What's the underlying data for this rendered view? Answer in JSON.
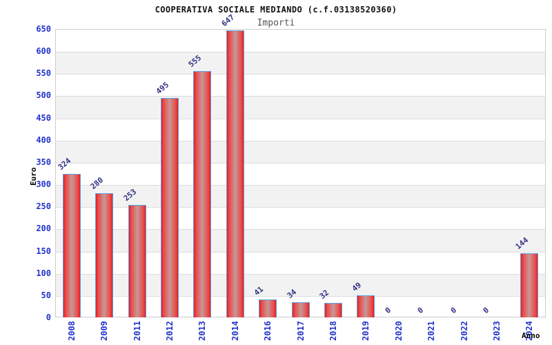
{
  "title": "COOPERATIVA SOCIALE MEDIANDO (c.f.03138520360)",
  "legend": "Importi",
  "chart_data": {
    "type": "bar",
    "title": "COOPERATIVA SOCIALE MEDIANDO (c.f.03138520360)",
    "legend_label": "Importi",
    "xlabel": "Anno",
    "ylabel": "Euro",
    "categories": [
      "2008",
      "2009",
      "2011",
      "2012",
      "2013",
      "2014",
      "2016",
      "2017",
      "2018",
      "2019",
      "2020",
      "2021",
      "2022",
      "2023",
      "2024"
    ],
    "values": [
      324,
      280,
      253,
      495,
      555,
      647,
      41,
      34,
      32,
      49,
      0,
      0,
      0,
      0,
      144
    ],
    "ylim": [
      0,
      650
    ],
    "ytick_step": 50,
    "ytick_labels": [
      "0",
      "50",
      "100",
      "150",
      "200",
      "250",
      "300",
      "350",
      "400",
      "450",
      "500",
      "550",
      "600",
      "650"
    ],
    "grid": "horizontal-bands-alternating",
    "legend_position": "top-center",
    "colors": {
      "bar_edge": "#e01f1f",
      "bar_mid": "#ee4545",
      "bar_center": "#c89494",
      "bar_border": "#5ba3e8",
      "tick_label": "#2233cc",
      "value_label": "#333388",
      "band_gray": "#f2f2f2",
      "band_white": "#ffffff",
      "grid_line": "#dddddd",
      "plot_border": "#cccccc",
      "title_color": "#111111",
      "legend_color": "#555555",
      "axis_label_color": "#000000"
    }
  }
}
